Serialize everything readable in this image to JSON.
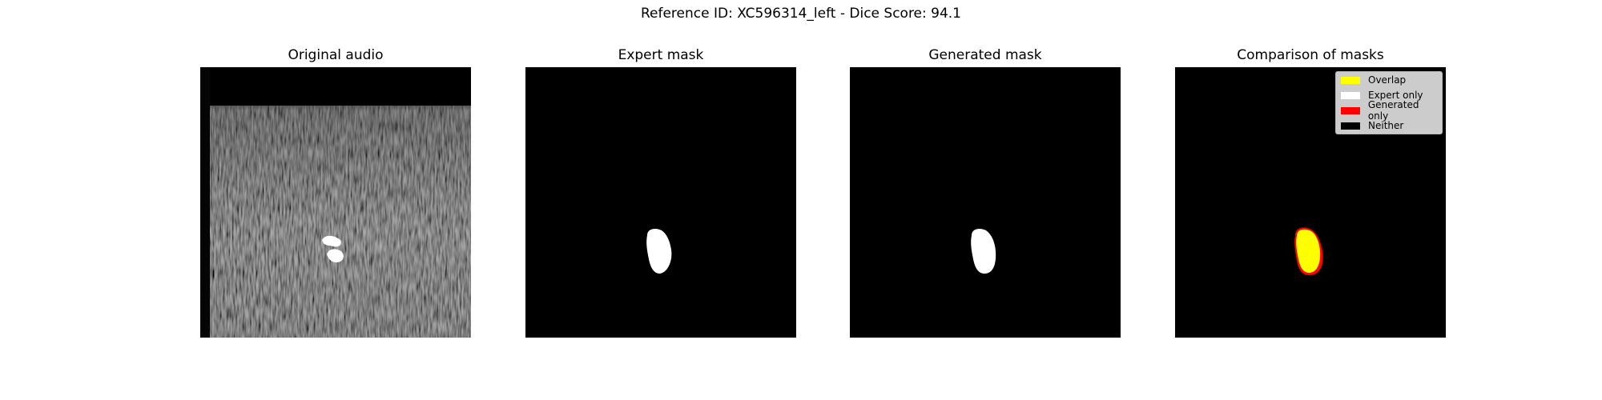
{
  "figure": {
    "title": "Reference ID: XC596314_left - Dice Score: 94.1"
  },
  "panels": [
    {
      "title": "Original audio"
    },
    {
      "title": "Expert mask"
    },
    {
      "title": "Generated mask"
    },
    {
      "title": "Comparison of masks"
    }
  ],
  "legend": {
    "items": [
      {
        "label": "Overlap",
        "color": "#ffff00"
      },
      {
        "label": "Expert only",
        "color": "#ffffff"
      },
      {
        "label": "Generated only",
        "color": "#ff0000"
      },
      {
        "label": "Neither",
        "color": "#000000"
      }
    ]
  }
}
